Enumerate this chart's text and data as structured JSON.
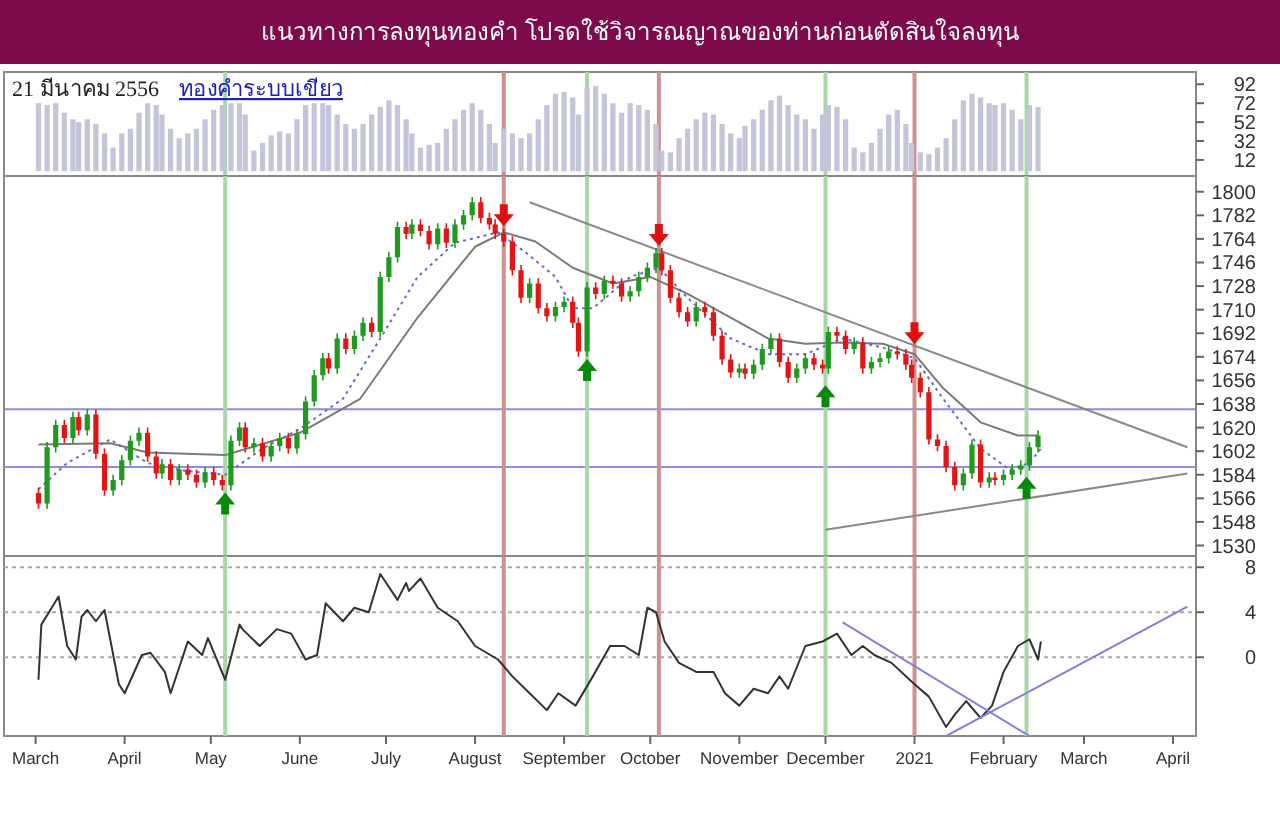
{
  "chart_data": [
    {
      "type": "bar",
      "title": "แนวทางการลงทุนทองคำ   โปรดใช้วิจารณญาณของท่านก่อนตัดสินใจลงทุน",
      "subtitle": "21 มีนาคม 2556",
      "annotations": [
        "ทองคำระบบเขียว"
      ],
      "color": "#c4c4da",
      "xlim": [
        "2020-02-19",
        "2021-04-09"
      ],
      "ylim": [
        -5,
        105
      ],
      "yticks": [
        12,
        32,
        52,
        72,
        92
      ],
      "tick_labels": "y",
      "x": [
        "2020-03-02",
        "2020-03-05",
        "2020-03-08",
        "2020-03-11",
        "2020-03-14",
        "2020-03-16",
        "2020-03-19",
        "2020-03-22",
        "2020-03-25",
        "2020-03-28",
        "2020-03-31",
        "2020-04-03",
        "2020-04-06",
        "2020-04-09",
        "2020-04-12",
        "2020-04-14",
        "2020-04-17",
        "2020-04-20",
        "2020-04-23",
        "2020-04-26",
        "2020-04-29",
        "2020-05-02",
        "2020-05-05",
        "2020-05-08",
        "2020-05-11",
        "2020-05-13",
        "2020-05-16",
        "2020-05-19",
        "2020-05-22",
        "2020-05-25",
        "2020-05-28",
        "2020-05-31",
        "2020-06-03",
        "2020-06-06",
        "2020-06-09",
        "2020-06-11",
        "2020-06-14",
        "2020-06-17",
        "2020-06-20",
        "2020-06-23",
        "2020-06-26",
        "2020-06-29",
        "2020-07-02",
        "2020-07-05",
        "2020-07-08",
        "2020-07-10",
        "2020-07-13",
        "2020-07-16",
        "2020-07-19",
        "2020-07-22",
        "2020-07-25",
        "2020-07-28",
        "2020-07-31",
        "2020-08-03",
        "2020-08-06",
        "2020-08-08",
        "2020-08-11",
        "2020-08-14",
        "2020-08-17",
        "2020-08-20",
        "2020-08-23",
        "2020-08-26",
        "2020-08-29",
        "2020-09-01",
        "2020-09-04",
        "2020-09-06",
        "2020-09-09",
        "2020-09-12",
        "2020-09-15",
        "2020-09-18",
        "2020-09-21",
        "2020-09-24",
        "2020-09-27",
        "2020-09-30",
        "2020-10-03",
        "2020-10-05",
        "2020-10-08",
        "2020-10-11",
        "2020-10-14",
        "2020-10-17",
        "2020-10-20",
        "2020-10-23",
        "2020-10-26",
        "2020-10-29",
        "2020-11-01",
        "2020-11-03",
        "2020-11-06",
        "2020-11-09",
        "2020-11-12",
        "2020-11-15",
        "2020-11-18",
        "2020-11-21",
        "2020-11-24",
        "2020-11-27",
        "2020-11-30",
        "2020-12-02",
        "2020-12-05",
        "2020-12-08",
        "2020-12-11",
        "2020-12-14",
        "2020-12-17",
        "2020-12-20",
        "2020-12-23",
        "2020-12-26",
        "2020-12-29",
        "2020-12-31",
        "2021-01-03",
        "2021-01-06",
        "2021-01-09",
        "2021-01-12",
        "2021-01-15",
        "2021-01-18",
        "2021-01-21",
        "2021-01-24",
        "2021-01-27",
        "2021-01-29",
        "2021-02-01",
        "2021-02-04",
        "2021-02-07",
        "2021-02-10",
        "2021-02-13"
      ],
      "values": [
        72,
        70,
        72,
        62,
        55,
        52,
        55,
        50,
        40,
        25,
        40,
        45,
        62,
        72,
        70,
        60,
        45,
        35,
        40,
        45,
        55,
        65,
        70,
        72,
        72,
        60,
        22,
        30,
        38,
        42,
        40,
        55,
        70,
        72,
        72,
        70,
        60,
        50,
        45,
        50,
        60,
        68,
        75,
        70,
        55,
        40,
        25,
        28,
        30,
        45,
        55,
        65,
        72,
        65,
        50,
        30,
        45,
        40,
        35,
        40,
        55,
        70,
        82,
        84,
        78,
        60,
        88,
        90,
        82,
        72,
        62,
        72,
        70,
        65,
        50,
        22,
        20,
        35,
        45,
        55,
        62,
        60,
        50,
        40,
        35,
        48,
        55,
        65,
        75,
        80,
        70,
        60,
        55,
        45,
        60,
        70,
        68,
        55,
        25,
        20,
        30,
        45,
        60,
        65,
        50,
        30,
        20,
        18,
        25,
        35,
        55,
        75,
        82,
        78,
        72,
        70,
        72,
        65,
        55,
        70,
        68
      ],
      "ref_lines": [
        {
          "axis": "x",
          "value": "2020-05-06",
          "color": "#a8d8a8"
        },
        {
          "axis": "x",
          "value": "2020-08-11",
          "color": "#d09090"
        },
        {
          "axis": "x",
          "value": "2020-09-09",
          "color": "#a8d8a8"
        },
        {
          "axis": "x",
          "value": "2020-10-04",
          "color": "#d09090"
        },
        {
          "axis": "x",
          "value": "2020-12-01",
          "color": "#a8d8a8"
        },
        {
          "axis": "x",
          "value": "2021-01-01",
          "color": "#d09090"
        },
        {
          "axis": "x",
          "value": "2021-02-09",
          "color": "#a8d8a8"
        }
      ]
    },
    {
      "type": "candlestick",
      "xlim": [
        "2020-02-19",
        "2021-04-09"
      ],
      "ylim": [
        1522,
        1812
      ],
      "yticks": [
        1530,
        1548,
        1566,
        1584,
        1602,
        1620,
        1638,
        1656,
        1674,
        1692,
        1710,
        1728,
        1746,
        1764,
        1782,
        1800
      ],
      "tick_labels": "y",
      "x": [
        "2020-03-02",
        "2020-03-05",
        "2020-03-08",
        "2020-03-11",
        "2020-03-14",
        "2020-03-16",
        "2020-03-19",
        "2020-03-22",
        "2020-03-25",
        "2020-03-28",
        "2020-03-31",
        "2020-04-03",
        "2020-04-06",
        "2020-04-09",
        "2020-04-12",
        "2020-04-14",
        "2020-04-17",
        "2020-04-20",
        "2020-04-23",
        "2020-04-26",
        "2020-04-29",
        "2020-05-02",
        "2020-05-05",
        "2020-05-08",
        "2020-05-11",
        "2020-05-13",
        "2020-05-16",
        "2020-05-19",
        "2020-05-22",
        "2020-05-25",
        "2020-05-28",
        "2020-05-31",
        "2020-06-03",
        "2020-06-06",
        "2020-06-09",
        "2020-06-11",
        "2020-06-14",
        "2020-06-17",
        "2020-06-20",
        "2020-06-23",
        "2020-06-26",
        "2020-06-29",
        "2020-07-02",
        "2020-07-05",
        "2020-07-08",
        "2020-07-10",
        "2020-07-13",
        "2020-07-16",
        "2020-07-19",
        "2020-07-22",
        "2020-07-25",
        "2020-07-28",
        "2020-07-31",
        "2020-08-03",
        "2020-08-06",
        "2020-08-08",
        "2020-08-11",
        "2020-08-14",
        "2020-08-17",
        "2020-08-20",
        "2020-08-23",
        "2020-08-26",
        "2020-08-29",
        "2020-09-01",
        "2020-09-04",
        "2020-09-06",
        "2020-09-09",
        "2020-09-12",
        "2020-09-15",
        "2020-09-18",
        "2020-09-21",
        "2020-09-24",
        "2020-09-27",
        "2020-09-30",
        "2020-10-03",
        "2020-10-05",
        "2020-10-08",
        "2020-10-11",
        "2020-10-14",
        "2020-10-17",
        "2020-10-20",
        "2020-10-23",
        "2020-10-26",
        "2020-10-29",
        "2020-11-01",
        "2020-11-03",
        "2020-11-06",
        "2020-11-09",
        "2020-11-12",
        "2020-11-15",
        "2020-11-18",
        "2020-11-21",
        "2020-11-24",
        "2020-11-27",
        "2020-11-30",
        "2020-12-02",
        "2020-12-05",
        "2020-12-08",
        "2020-12-11",
        "2020-12-14",
        "2020-12-17",
        "2020-12-20",
        "2020-12-23",
        "2020-12-26",
        "2020-12-29",
        "2020-12-31",
        "2021-01-03",
        "2021-01-06",
        "2021-01-09",
        "2021-01-12",
        "2021-01-15",
        "2021-01-18",
        "2021-01-21",
        "2021-01-24",
        "2021-01-27",
        "2021-01-29",
        "2021-02-01",
        "2021-02-04",
        "2021-02-07",
        "2021-02-10",
        "2021-02-13"
      ],
      "ohlc": [
        [
          1570,
          1574,
          1558,
          1562
        ],
        [
          1562,
          1609,
          1558,
          1605
        ],
        [
          1605,
          1626,
          1601,
          1622
        ],
        [
          1622,
          1626,
          1608,
          1612
        ],
        [
          1612,
          1632,
          1608,
          1628
        ],
        [
          1628,
          1632,
          1614,
          1618
        ],
        [
          1618,
          1634,
          1614,
          1630
        ],
        [
          1630,
          1634,
          1596,
          1600
        ],
        [
          1600,
          1604,
          1568,
          1572
        ],
        [
          1572,
          1584,
          1568,
          1580
        ],
        [
          1580,
          1599,
          1576,
          1595
        ],
        [
          1595,
          1614,
          1591,
          1610
        ],
        [
          1610,
          1620,
          1606,
          1616
        ],
        [
          1616,
          1620,
          1594,
          1598
        ],
        [
          1598,
          1602,
          1581,
          1585
        ],
        [
          1585,
          1596,
          1581,
          1592
        ],
        [
          1592,
          1596,
          1576,
          1580
        ],
        [
          1580,
          1592,
          1576,
          1588
        ],
        [
          1588,
          1592,
          1580,
          1584
        ],
        [
          1584,
          1588,
          1574,
          1578
        ],
        [
          1578,
          1590,
          1574,
          1586
        ],
        [
          1586,
          1590,
          1576,
          1580
        ],
        [
          1580,
          1584,
          1572,
          1576
        ],
        [
          1576,
          1614,
          1572,
          1610
        ],
        [
          1610,
          1624,
          1606,
          1620
        ],
        [
          1620,
          1624,
          1601,
          1605
        ],
        [
          1605,
          1612,
          1601,
          1608
        ],
        [
          1608,
          1612,
          1594,
          1598
        ],
        [
          1598,
          1610,
          1594,
          1606
        ],
        [
          1606,
          1616,
          1602,
          1612
        ],
        [
          1612,
          1616,
          1600,
          1604
        ],
        [
          1604,
          1619,
          1600,
          1615
        ],
        [
          1615,
          1644,
          1611,
          1640
        ],
        [
          1640,
          1664,
          1636,
          1660
        ],
        [
          1660,
          1677,
          1656,
          1673
        ],
        [
          1673,
          1677,
          1661,
          1665
        ],
        [
          1665,
          1692,
          1661,
          1688
        ],
        [
          1688,
          1692,
          1676,
          1680
        ],
        [
          1680,
          1694,
          1676,
          1690
        ],
        [
          1690,
          1704,
          1686,
          1700
        ],
        [
          1700,
          1704,
          1689,
          1693
        ],
        [
          1693,
          1739,
          1689,
          1735
        ],
        [
          1735,
          1754,
          1731,
          1750
        ],
        [
          1750,
          1777,
          1746,
          1773
        ],
        [
          1773,
          1777,
          1764,
          1768
        ],
        [
          1768,
          1779,
          1764,
          1775
        ],
        [
          1775,
          1779,
          1766,
          1770
        ],
        [
          1770,
          1774,
          1756,
          1760
        ],
        [
          1760,
          1776,
          1756,
          1772
        ],
        [
          1772,
          1776,
          1757,
          1761
        ],
        [
          1761,
          1779,
          1757,
          1775
        ],
        [
          1775,
          1786,
          1771,
          1782
        ],
        [
          1782,
          1796,
          1778,
          1792
        ],
        [
          1792,
          1796,
          1776,
          1780
        ],
        [
          1780,
          1784,
          1771,
          1775
        ],
        [
          1775,
          1779,
          1764,
          1768
        ],
        [
          1768,
          1772,
          1758,
          1762
        ],
        [
          1762,
          1766,
          1736,
          1740
        ],
        [
          1740,
          1744,
          1715,
          1719
        ],
        [
          1719,
          1734,
          1715,
          1730
        ],
        [
          1730,
          1734,
          1707,
          1711
        ],
        [
          1711,
          1715,
          1701,
          1705
        ],
        [
          1705,
          1716,
          1701,
          1712
        ],
        [
          1712,
          1720,
          1708,
          1716
        ],
        [
          1716,
          1720,
          1696,
          1700
        ],
        [
          1700,
          1704,
          1674,
          1678
        ],
        [
          1678,
          1731,
          1674,
          1727
        ],
        [
          1727,
          1731,
          1718,
          1722
        ],
        [
          1722,
          1736,
          1718,
          1732
        ],
        [
          1732,
          1736,
          1726,
          1730
        ],
        [
          1730,
          1734,
          1716,
          1720
        ],
        [
          1720,
          1728,
          1716,
          1724
        ],
        [
          1724,
          1739,
          1720,
          1735
        ],
        [
          1735,
          1746,
          1731,
          1742
        ],
        [
          1742,
          1757,
          1738,
          1753
        ],
        [
          1753,
          1757,
          1736,
          1740
        ],
        [
          1740,
          1744,
          1715,
          1719
        ],
        [
          1719,
          1723,
          1704,
          1708
        ],
        [
          1708,
          1712,
          1697,
          1701
        ],
        [
          1701,
          1716,
          1697,
          1712
        ],
        [
          1712,
          1716,
          1704,
          1708
        ],
        [
          1708,
          1712,
          1686,
          1690
        ],
        [
          1690,
          1694,
          1668,
          1672
        ],
        [
          1672,
          1676,
          1658,
          1662
        ],
        [
          1662,
          1669,
          1658,
          1665
        ],
        [
          1665,
          1669,
          1657,
          1661
        ],
        [
          1661,
          1672,
          1657,
          1668
        ],
        [
          1668,
          1684,
          1664,
          1680
        ],
        [
          1680,
          1692,
          1676,
          1688
        ],
        [
          1688,
          1692,
          1666,
          1670
        ],
        [
          1670,
          1674,
          1654,
          1658
        ],
        [
          1658,
          1669,
          1654,
          1665
        ],
        [
          1665,
          1677,
          1661,
          1673
        ],
        [
          1673,
          1677,
          1664,
          1668
        ],
        [
          1668,
          1672,
          1661,
          1665
        ],
        [
          1665,
          1697,
          1661,
          1693
        ],
        [
          1693,
          1697,
          1686,
          1690
        ],
        [
          1690,
          1694,
          1676,
          1680
        ],
        [
          1680,
          1689,
          1676,
          1685
        ],
        [
          1685,
          1689,
          1661,
          1665
        ],
        [
          1665,
          1674,
          1661,
          1670
        ],
        [
          1670,
          1677,
          1666,
          1673
        ],
        [
          1673,
          1682,
          1669,
          1678
        ],
        [
          1678,
          1682,
          1672,
          1676
        ],
        [
          1676,
          1680,
          1664,
          1668
        ],
        [
          1668,
          1672,
          1654,
          1658
        ],
        [
          1658,
          1662,
          1643,
          1647
        ],
        [
          1647,
          1651,
          1607,
          1611
        ],
        [
          1611,
          1615,
          1602,
          1606
        ],
        [
          1606,
          1610,
          1586,
          1590
        ],
        [
          1590,
          1594,
          1572,
          1576
        ],
        [
          1576,
          1589,
          1572,
          1585
        ],
        [
          1585,
          1611,
          1581,
          1607
        ],
        [
          1607,
          1611,
          1574,
          1578
        ],
        [
          1578,
          1586,
          1574,
          1582
        ],
        [
          1582,
          1586,
          1576,
          1580
        ],
        [
          1580,
          1588,
          1576,
          1584
        ],
        [
          1584,
          1592,
          1580,
          1588
        ],
        [
          1588,
          1595,
          1584,
          1591
        ],
        [
          1591,
          1609,
          1587,
          1605
        ],
        [
          1605,
          1618,
          1601,
          1614
        ]
      ],
      "series": [
        {
          "type": "line",
          "color": "#7a7a7a",
          "line_style": "solid",
          "x": [
            "2020-03-02",
            "2020-03-27",
            "2020-04-09",
            "2020-05-06",
            "2020-06-01",
            "2020-06-22",
            "2020-07-12",
            "2020-08-01",
            "2020-08-11",
            "2020-08-22",
            "2020-09-04",
            "2020-09-18",
            "2020-10-01",
            "2020-10-14",
            "2020-10-29",
            "2020-11-11",
            "2020-11-24",
            "2020-12-07",
            "2020-12-21",
            "2021-01-01",
            "2021-01-11",
            "2021-01-24",
            "2021-02-06",
            "2021-02-13"
          ],
          "values": [
            1607,
            1608,
            1601,
            1599,
            1616,
            1642,
            1704,
            1758,
            1769,
            1762,
            1742,
            1730,
            1735,
            1722,
            1704,
            1688,
            1684,
            1685,
            1684,
            1676,
            1650,
            1624,
            1614,
            1614
          ]
        },
        {
          "type": "line",
          "color": "#6a6ad0",
          "line_style": "dotted",
          "x": [
            "2020-03-02",
            "2020-03-12",
            "2020-03-27",
            "2020-04-09",
            "2020-04-22",
            "2020-05-06",
            "2020-05-19",
            "2020-06-01",
            "2020-06-16",
            "2020-06-29",
            "2020-07-12",
            "2020-07-25",
            "2020-08-09",
            "2020-08-19",
            "2020-08-29",
            "2020-09-04",
            "2020-09-11",
            "2020-09-24",
            "2020-10-04",
            "2020-10-14",
            "2020-10-29",
            "2020-11-11",
            "2020-11-24",
            "2020-12-07",
            "2020-12-21",
            "2021-01-01",
            "2021-01-11",
            "2021-01-24",
            "2021-02-03",
            "2021-02-10",
            "2021-02-14"
          ],
          "values": [
            1573,
            1593,
            1611,
            1593,
            1587,
            1584,
            1604,
            1619,
            1642,
            1688,
            1735,
            1761,
            1769,
            1753,
            1735,
            1711,
            1711,
            1735,
            1742,
            1719,
            1688,
            1676,
            1676,
            1688,
            1681,
            1673,
            1642,
            1604,
            1588,
            1593,
            1604
          ]
        },
        {
          "type": "line",
          "color": "#8a8a8a",
          "line_style": "solid",
          "x": [
            "2020-08-20",
            "2021-04-06"
          ],
          "values": [
            1792,
            1605
          ]
        },
        {
          "type": "line",
          "color": "#8a8a8a",
          "line_style": "solid",
          "x": [
            "2020-12-01",
            "2021-04-06"
          ],
          "values": [
            1542,
            1585
          ]
        },
        {
          "type": "scatter",
          "color": "#0a8a0a",
          "x": [
            "2020-05-06",
            "2020-09-09",
            "2020-12-01",
            "2021-02-09"
          ],
          "values": [
            1562,
            1664,
            1644,
            1574
          ]
        },
        {
          "type": "scatter",
          "color": "#e01010",
          "x": [
            "2020-08-11",
            "2020-10-04",
            "2021-01-01"
          ],
          "values": [
            1782,
            1767,
            1692
          ]
        }
      ],
      "ref_lines": [
        {
          "axis": "y",
          "value": 1634,
          "color": "#8c8ce0"
        },
        {
          "axis": "y",
          "value": 1590,
          "color": "#8c8ce0"
        },
        {
          "axis": "x",
          "value": "2020-05-06",
          "color": "#a8d8a8"
        },
        {
          "axis": "x",
          "value": "2020-08-11",
          "color": "#d09090"
        },
        {
          "axis": "x",
          "value": "2020-09-09",
          "color": "#a8d8a8"
        },
        {
          "axis": "x",
          "value": "2020-10-04",
          "color": "#d09090"
        },
        {
          "axis": "x",
          "value": "2020-12-01",
          "color": "#a8d8a8"
        },
        {
          "axis": "x",
          "value": "2021-01-01",
          "color": "#d09090"
        },
        {
          "axis": "x",
          "value": "2021-02-09",
          "color": "#a8d8a8"
        }
      ]
    },
    {
      "type": "line",
      "xlim": [
        "2020-02-19",
        "2021-04-09"
      ],
      "ylim": [
        -7,
        9
      ],
      "yticks": [
        0,
        4,
        8
      ],
      "grid": "y",
      "xticks": [
        {
          "value": "2020-03",
          "label": "March"
        },
        {
          "value": "2020-04",
          "label": "April"
        },
        {
          "value": "2020-05",
          "label": "May"
        },
        {
          "value": "2020-06",
          "label": "June"
        },
        {
          "value": "2020-07",
          "label": "July"
        },
        {
          "value": "2020-08",
          "label": "August"
        },
        {
          "value": "2020-09",
          "label": "September"
        },
        {
          "value": "2020-10",
          "label": "October"
        },
        {
          "value": "2020-11",
          "label": "November"
        },
        {
          "value": "2020-12",
          "label": "December"
        },
        {
          "value": "2021-01",
          "label": "2021"
        },
        {
          "value": "2021-02",
          "label": "February"
        },
        {
          "value": "2021-03",
          "label": "March"
        },
        {
          "value": "2021-04",
          "label": "April"
        }
      ],
      "series": [
        {
          "color": "#333333",
          "x": [
            "2020-03-02",
            "2020-03-03",
            "2020-03-09",
            "2020-03-12",
            "2020-03-15",
            "2020-03-17",
            "2020-03-19",
            "2020-03-22",
            "2020-03-25",
            "2020-03-30",
            "2020-04-01",
            "2020-04-07",
            "2020-04-10",
            "2020-04-15",
            "2020-04-17",
            "2020-04-23",
            "2020-04-28",
            "2020-04-30",
            "2020-05-06",
            "2020-05-11",
            "2020-05-12",
            "2020-05-18",
            "2020-05-24",
            "2020-05-29",
            "2020-06-03",
            "2020-06-07",
            "2020-06-10",
            "2020-06-16",
            "2020-06-20",
            "2020-06-25",
            "2020-06-29",
            "2020-07-05",
            "2020-07-08",
            "2020-07-09",
            "2020-07-13",
            "2020-07-19",
            "2020-07-26",
            "2020-08-01",
            "2020-08-09",
            "2020-08-14",
            "2020-08-20",
            "2020-08-26",
            "2020-08-30",
            "2020-09-05",
            "2020-09-11",
            "2020-09-17",
            "2020-09-22",
            "2020-09-27",
            "2020-09-30",
            "2020-10-03",
            "2020-10-06",
            "2020-10-11",
            "2020-10-17",
            "2020-10-23",
            "2020-10-27",
            "2020-11-01",
            "2020-11-06",
            "2020-11-11",
            "2020-11-15",
            "2020-11-18",
            "2020-11-24",
            "2020-11-30",
            "2020-12-05",
            "2020-12-10",
            "2020-12-14",
            "2020-12-18",
            "2020-12-24",
            "2021-01-01",
            "2021-01-06",
            "2021-01-12",
            "2021-01-15",
            "2021-01-19",
            "2021-01-24",
            "2021-01-28",
            "2021-02-01",
            "2021-02-06",
            "2021-02-10",
            "2021-02-13",
            "2021-02-14"
          ],
          "values": [
            -2.0,
            2.9,
            5.4,
            1.0,
            -0.2,
            3.6,
            4.2,
            3.2,
            4.2,
            -2.4,
            -3.2,
            0.2,
            0.4,
            -1.3,
            -3.2,
            1.4,
            0.2,
            1.7,
            -2.0,
            2.9,
            2.5,
            1.0,
            2.5,
            2.1,
            -0.2,
            0.2,
            4.8,
            3.2,
            4.4,
            4.0,
            7.4,
            5.1,
            6.6,
            5.9,
            7.0,
            4.4,
            3.2,
            1.0,
            -0.2,
            -1.7,
            -3.2,
            -4.7,
            -3.2,
            -4.3,
            -1.7,
            1.0,
            1.0,
            0.2,
            4.4,
            4.0,
            1.4,
            -0.5,
            -1.3,
            -1.3,
            -3.2,
            -4.3,
            -2.8,
            -3.2,
            -1.7,
            -2.8,
            1.0,
            1.4,
            2.1,
            0.2,
            1.0,
            0.2,
            -0.5,
            -2.4,
            -3.5,
            -6.2,
            -5.1,
            -3.9,
            -5.4,
            -4.3,
            -1.3,
            1.0,
            1.6,
            -0.2,
            1.4
          ]
        },
        {
          "color": "#8080e0",
          "x": [
            "2020-12-07",
            "2021-02-10"
          ],
          "values": [
            3.1,
            -7
          ]
        },
        {
          "color": "#8080e0",
          "x": [
            "2021-01-12",
            "2021-04-06"
          ],
          "values": [
            -7,
            4.5
          ]
        }
      ],
      "ref_lines": [
        {
          "axis": "x",
          "value": "2020-05-06",
          "color": "#a8d8a8"
        },
        {
          "axis": "x",
          "value": "2020-08-11",
          "color": "#d09090"
        },
        {
          "axis": "x",
          "value": "2020-09-09",
          "color": "#a8d8a8"
        },
        {
          "axis": "x",
          "value": "2020-10-04",
          "color": "#d09090"
        },
        {
          "axis": "x",
          "value": "2020-12-01",
          "color": "#a8d8a8"
        },
        {
          "axis": "x",
          "value": "2021-01-01",
          "color": "#d09090"
        },
        {
          "axis": "x",
          "value": "2021-02-09",
          "color": "#a8d8a8"
        }
      ]
    }
  ]
}
